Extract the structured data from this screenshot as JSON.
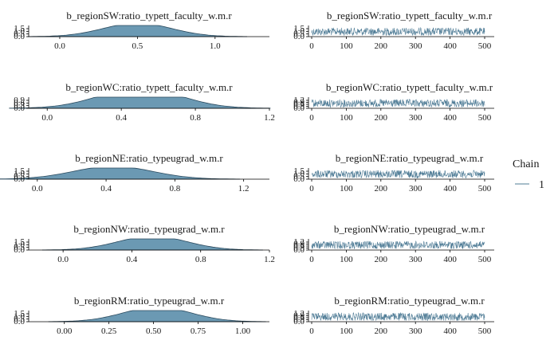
{
  "chart_data": {
    "type": "line",
    "legend": {
      "title": "Chain",
      "entries": [
        {
          "label": "1",
          "color": "#4f7c96"
        }
      ]
    },
    "colors": {
      "density_fill": "#6b99b3",
      "density_line": "#2b4a5e",
      "trace_line": "#4f7c96",
      "axis": "#000000"
    },
    "panels": [
      {
        "title": "b_regionSW:ratio_typett_faculty_w.m.r",
        "density": {
          "type": "area",
          "xlim": [
            -0.2,
            1.35
          ],
          "x_ticks": [
            "0.0",
            "0.5",
            "1.0"
          ],
          "x_tick_values": [
            0,
            0.5,
            1.0
          ],
          "y_ticks": [
            "0.0",
            "0.5",
            "1.0",
            "1.5"
          ],
          "ymax": 1.5,
          "mean": 0.5,
          "sd": 0.22
        },
        "trace": {
          "type": "line",
          "iterations": 500,
          "x_ticks": [
            "0",
            "100",
            "200",
            "300",
            "400",
            "500"
          ],
          "y_ticks": [
            "0.0",
            "0.5",
            "1.0",
            "1.5"
          ]
        }
      },
      {
        "title": "b_regionWC:ratio_typett_faculty_w.m.r",
        "density": {
          "type": "area",
          "xlim": [
            -0.1,
            1.2
          ],
          "x_ticks": [
            "0.0",
            "0.4",
            "0.8",
            "1.2"
          ],
          "x_tick_values": [
            0,
            0.4,
            0.8,
            1.2
          ],
          "y_ticks": [
            "0.0",
            "0.3",
            "0.6",
            "0.9"
          ],
          "ymax": 1.0,
          "mean": 0.5,
          "sd": 0.22
        },
        "trace": {
          "type": "line",
          "iterations": 500,
          "x_ticks": [
            "0",
            "100",
            "200",
            "300",
            "400",
            "500"
          ],
          "y_ticks": [
            "0.0",
            "0.3",
            "0.6",
            "0.9",
            "1.2"
          ]
        }
      },
      {
        "title": "b_regionNE:ratio_typeugrad_w.m.r",
        "density": {
          "type": "area",
          "xlim": [
            -0.05,
            1.35
          ],
          "x_ticks": [
            "0.0",
            "0.4",
            "0.8",
            "1.2"
          ],
          "x_tick_values": [
            0,
            0.4,
            0.8,
            1.2
          ],
          "y_ticks": [
            "0.0",
            "0.5",
            "1.0",
            "1.5"
          ],
          "ymax": 1.5,
          "mean": 0.44,
          "sd": 0.23
        },
        "trace": {
          "type": "line",
          "iterations": 500,
          "x_ticks": [
            "0",
            "100",
            "200",
            "300",
            "400",
            "500"
          ],
          "y_ticks": [
            "0.0",
            "0.5",
            "1.0",
            "1.5"
          ]
        }
      },
      {
        "title": "b_regionNW:ratio_typeugrad_w.m.r",
        "density": {
          "type": "area",
          "xlim": [
            -0.2,
            1.2
          ],
          "x_ticks": [
            "0.0",
            "0.4",
            "0.8",
            "1.2"
          ],
          "x_tick_values": [
            0,
            0.4,
            0.8,
            1.2
          ],
          "y_ticks": [
            "0.0",
            "0.5",
            "1.0",
            "1.5"
          ],
          "ymax": 1.6,
          "mean": 0.52,
          "sd": 0.2
        },
        "trace": {
          "type": "line",
          "iterations": 500,
          "x_ticks": [
            "0",
            "100",
            "200",
            "300",
            "400",
            "500"
          ],
          "y_ticks": [
            "0.0",
            "0.3",
            "0.6",
            "0.9",
            "1.2"
          ]
        }
      },
      {
        "title": "b_regionRM:ratio_typeugrad_w.m.r",
        "density": {
          "type": "area",
          "xlim": [
            -0.2,
            1.15
          ],
          "x_ticks": [
            "0.00",
            "0.25",
            "0.50",
            "0.75",
            "1.00"
          ],
          "x_tick_values": [
            0,
            0.25,
            0.5,
            0.75,
            1.0
          ],
          "y_ticks": [
            "0.0",
            "0.5",
            "1.0",
            "1.5"
          ],
          "ymax": 1.6,
          "mean": 0.52,
          "sd": 0.19
        },
        "trace": {
          "type": "line",
          "iterations": 500,
          "x_ticks": [
            "0",
            "100",
            "200",
            "300",
            "400",
            "500"
          ],
          "y_ticks": [
            "0.0",
            "0.3",
            "0.6",
            "0.9",
            "1.2"
          ]
        }
      }
    ]
  }
}
